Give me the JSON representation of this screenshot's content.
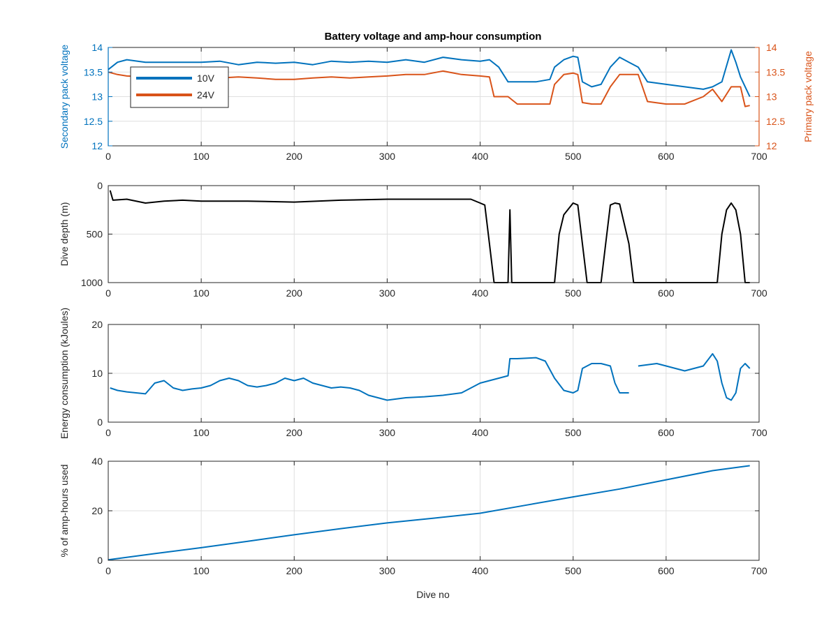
{
  "figure": {
    "title": "Battery voltage and amp-hour consumption",
    "xlabel": "Dive no"
  },
  "chart_data": [
    {
      "type": "line",
      "title": "Battery voltage and amp-hour consumption",
      "xlabel": "",
      "ylabel": "Secondary pack voltage",
      "ylabel_right": "Primary pack voltage",
      "xlim": [
        0,
        700
      ],
      "ylim": [
        12,
        14
      ],
      "ylim_right": [
        12,
        14
      ],
      "xticks": [
        0,
        100,
        200,
        300,
        400,
        500,
        600,
        700
      ],
      "yticks": [
        12,
        12.5,
        13,
        13.5,
        14
      ],
      "yticks_right": [
        12,
        12.5,
        13,
        13.5,
        14
      ],
      "grid": true,
      "legend_position": "top-left",
      "colors": {
        "left_axis": "#0072BD",
        "right_axis": "#D95319"
      },
      "series": [
        {
          "name": "10V",
          "color": "#0072BD",
          "axis": "left",
          "x": [
            0,
            10,
            20,
            40,
            60,
            80,
            100,
            120,
            140,
            160,
            180,
            200,
            220,
            240,
            260,
            280,
            300,
            320,
            340,
            360,
            380,
            400,
            410,
            420,
            430,
            440,
            460,
            475,
            480,
            490,
            500,
            505,
            510,
            520,
            530,
            540,
            550,
            560,
            570,
            580,
            600,
            620,
            640,
            650,
            660,
            670,
            675,
            680,
            690
          ],
          "y": [
            13.55,
            13.7,
            13.75,
            13.7,
            13.7,
            13.7,
            13.7,
            13.72,
            13.65,
            13.7,
            13.68,
            13.7,
            13.65,
            13.72,
            13.7,
            13.72,
            13.7,
            13.75,
            13.7,
            13.8,
            13.75,
            13.72,
            13.75,
            13.6,
            13.3,
            13.3,
            13.3,
            13.35,
            13.6,
            13.75,
            13.82,
            13.8,
            13.3,
            13.2,
            13.25,
            13.6,
            13.8,
            13.7,
            13.6,
            13.3,
            13.25,
            13.2,
            13.15,
            13.2,
            13.3,
            13.95,
            13.7,
            13.4,
            13.0
          ]
        },
        {
          "name": "24V",
          "color": "#D95319",
          "axis": "right",
          "x": [
            0,
            10,
            20,
            40,
            60,
            80,
            100,
            120,
            140,
            160,
            180,
            200,
            220,
            240,
            260,
            280,
            300,
            320,
            340,
            360,
            380,
            400,
            410,
            415,
            420,
            430,
            440,
            460,
            475,
            480,
            490,
            500,
            505,
            510,
            520,
            530,
            540,
            550,
            560,
            570,
            580,
            600,
            620,
            640,
            650,
            660,
            670,
            680,
            685,
            690
          ],
          "y": [
            13.5,
            13.45,
            13.42,
            13.4,
            13.4,
            13.4,
            13.38,
            13.38,
            13.4,
            13.38,
            13.35,
            13.35,
            13.38,
            13.4,
            13.38,
            13.4,
            13.42,
            13.45,
            13.45,
            13.52,
            13.45,
            13.42,
            13.4,
            13.0,
            13.0,
            13.0,
            12.85,
            12.85,
            12.85,
            13.25,
            13.45,
            13.48,
            13.45,
            12.88,
            12.85,
            12.85,
            13.2,
            13.45,
            13.45,
            13.45,
            12.9,
            12.85,
            12.85,
            13.0,
            13.15,
            12.9,
            13.2,
            13.2,
            12.8,
            12.82
          ]
        }
      ]
    },
    {
      "type": "line",
      "title": "",
      "xlabel": "",
      "ylabel": "Dive depth (m)",
      "xlim": [
        0,
        700
      ],
      "ylim": [
        0,
        1000
      ],
      "y_reversed": true,
      "xticks": [
        0,
        100,
        200,
        300,
        400,
        500,
        600,
        700
      ],
      "yticks": [
        0,
        500,
        1000
      ],
      "grid": true,
      "series": [
        {
          "color": "#000000",
          "x": [
            2,
            5,
            20,
            40,
            60,
            80,
            100,
            150,
            200,
            250,
            300,
            350,
            390,
            400,
            405,
            410,
            415,
            430,
            432,
            434,
            436,
            440,
            470,
            480,
            485,
            490,
            500,
            505,
            510,
            515,
            520,
            530,
            535,
            540,
            545,
            550,
            560,
            565,
            570,
            600,
            640,
            655,
            660,
            665,
            670,
            675,
            680,
            685,
            690
          ],
          "y": [
            50,
            150,
            140,
            180,
            160,
            150,
            160,
            160,
            170,
            150,
            140,
            140,
            140,
            180,
            200,
            600,
            1000,
            1000,
            250,
            1000,
            1000,
            1000,
            1000,
            1000,
            500,
            300,
            180,
            200,
            600,
            1000,
            1000,
            1000,
            600,
            200,
            180,
            190,
            600,
            1000,
            1000,
            1000,
            1000,
            1000,
            500,
            250,
            180,
            250,
            500,
            1000,
            1000
          ]
        }
      ]
    },
    {
      "type": "line",
      "title": "",
      "xlabel": "",
      "ylabel": "Energy consumption (kJoules)",
      "xlim": [
        0,
        700
      ],
      "ylim": [
        0,
        20
      ],
      "xticks": [
        0,
        100,
        200,
        300,
        400,
        500,
        600,
        700
      ],
      "yticks": [
        0,
        10,
        20
      ],
      "grid": true,
      "series": [
        {
          "color": "#0072BD",
          "x": [
            2,
            10,
            20,
            30,
            40,
            50,
            60,
            70,
            80,
            90,
            100,
            110,
            120,
            130,
            140,
            150,
            160,
            170,
            180,
            190,
            200,
            210,
            220,
            230,
            240,
            250,
            260,
            270,
            280,
            290,
            300,
            320,
            340,
            360,
            380,
            390,
            400,
            410,
            420,
            430,
            432,
            440,
            460,
            470,
            480,
            490,
            500,
            505,
            510,
            520,
            530,
            540,
            545,
            550,
            560,
            565,
            570,
            590,
            600,
            610,
            620,
            630,
            640,
            650,
            655,
            660,
            665,
            670,
            675,
            680,
            685,
            690
          ],
          "y": [
            7,
            6.5,
            6.2,
            6,
            5.8,
            8,
            8.5,
            7,
            6.5,
            6.8,
            7,
            7.5,
            8.5,
            9,
            8.5,
            7.5,
            7.2,
            7.5,
            8,
            9,
            8.5,
            9,
            8,
            7.5,
            7,
            7.2,
            7,
            6.5,
            5.5,
            5,
            4.5,
            5,
            5.2,
            5.5,
            6,
            7,
            8,
            8.5,
            9,
            9.5,
            13,
            13,
            13.2,
            12.5,
            9,
            6.5,
            6,
            6.5,
            11,
            12,
            12,
            11.5,
            8,
            6,
            6,
            null,
            11.5,
            12,
            11.5,
            11,
            10.5,
            11,
            11.5,
            14,
            12.5,
            8,
            5,
            4.5,
            6,
            11,
            12,
            11
          ]
        }
      ]
    },
    {
      "type": "line",
      "title": "",
      "xlabel": "Dive no",
      "ylabel": "% of amp-hours used",
      "xlim": [
        0,
        700
      ],
      "ylim": [
        0,
        40
      ],
      "xticks": [
        0,
        100,
        200,
        300,
        400,
        500,
        600,
        700
      ],
      "yticks": [
        0,
        20,
        40
      ],
      "grid": true,
      "series": [
        {
          "color": "#0072BD",
          "x": [
            0,
            50,
            100,
            150,
            200,
            250,
            300,
            350,
            400,
            450,
            500,
            550,
            600,
            650,
            690
          ],
          "y": [
            0.2,
            2.7,
            5.1,
            7.7,
            10.3,
            12.8,
            15.1,
            17,
            19,
            22.3,
            25.6,
            28.8,
            32.5,
            36.2,
            38.2
          ]
        }
      ]
    }
  ]
}
